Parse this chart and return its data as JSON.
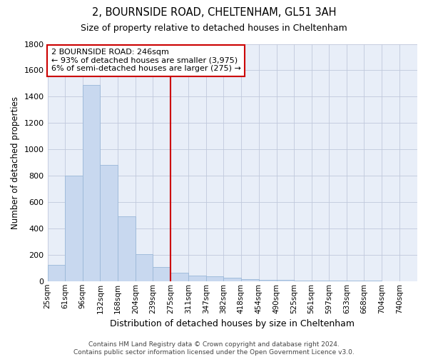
{
  "title": "2, BOURNSIDE ROAD, CHELTENHAM, GL51 3AH",
  "subtitle": "Size of property relative to detached houses in Cheltenham",
  "xlabel": "Distribution of detached houses by size in Cheltenham",
  "ylabel": "Number of detached properties",
  "bar_color": "#c8d8ef",
  "bar_edge_color": "#9ab8d8",
  "background_color": "#e8eef8",
  "grid_color": "#c0c8dc",
  "annotation_line_color": "#cc0000",
  "annotation_box_color": "#cc0000",
  "annotation_text_line1": "2 BOURNSIDE ROAD: 246sqm",
  "annotation_text_line2": "← 93% of detached houses are smaller (3,975)",
  "annotation_text_line3": "6% of semi-detached houses are larger (275) →",
  "property_size_bin": 6,
  "categories": [
    "25sqm",
    "61sqm",
    "96sqm",
    "132sqm",
    "168sqm",
    "204sqm",
    "239sqm",
    "275sqm",
    "311sqm",
    "347sqm",
    "382sqm",
    "418sqm",
    "454sqm",
    "490sqm",
    "525sqm",
    "561sqm",
    "597sqm",
    "633sqm",
    "668sqm",
    "704sqm",
    "740sqm"
  ],
  "bin_edges": [
    25,
    61,
    96,
    132,
    168,
    204,
    239,
    275,
    311,
    347,
    382,
    418,
    454,
    490,
    525,
    561,
    597,
    633,
    668,
    704,
    740,
    776
  ],
  "values": [
    125,
    800,
    1490,
    880,
    490,
    205,
    105,
    65,
    42,
    35,
    28,
    15,
    10,
    8,
    5,
    4,
    3,
    2,
    2,
    1,
    1
  ],
  "ylim": [
    0,
    1800
  ],
  "yticks": [
    0,
    200,
    400,
    600,
    800,
    1000,
    1200,
    1400,
    1600,
    1800
  ],
  "footer_line1": "Contains HM Land Registry data © Crown copyright and database right 2024.",
  "footer_line2": "Contains public sector information licensed under the Open Government Licence v3.0."
}
